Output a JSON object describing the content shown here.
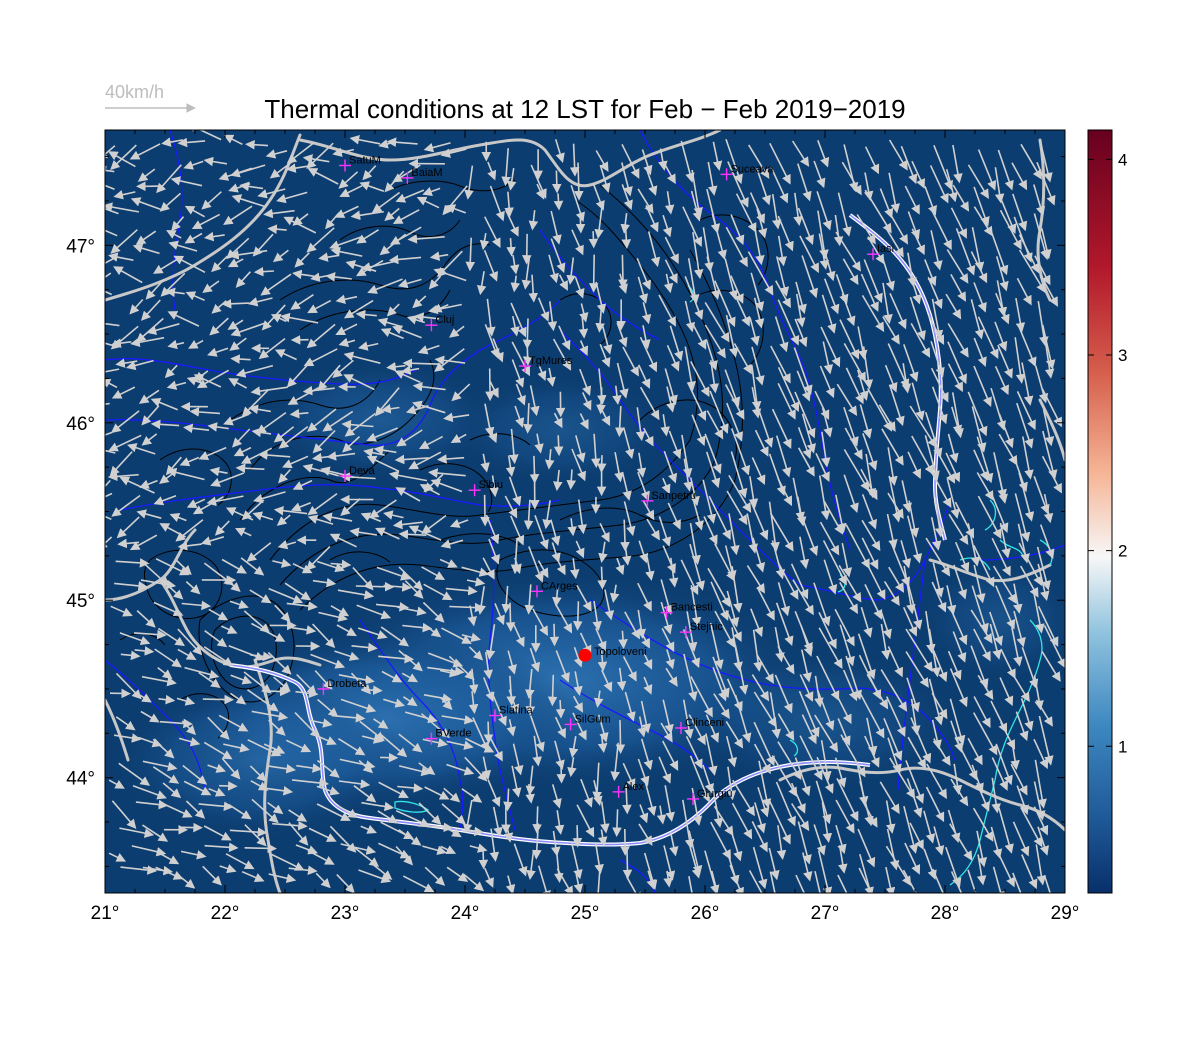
{
  "title": "Thermal conditions at 12 LST for Feb − Feb  2019−2019",
  "wind_scale": {
    "label": "40km/h"
  },
  "x_ticks": [
    "21°",
    "22°",
    "23°",
    "24°",
    "25°",
    "26°",
    "27°",
    "28°",
    "29°"
  ],
  "y_ticks": [
    "47°",
    "46°",
    "45°",
    "44°"
  ],
  "colorbar": {
    "ticks": [
      "1",
      "2",
      "3",
      "4"
    ],
    "colors": [
      "#08306b",
      "#2166ac",
      "#4393c3",
      "#92c5de",
      "#f7f7f7",
      "#f4a582",
      "#d6604d",
      "#b2182b",
      "#67001f"
    ]
  },
  "colors": {
    "map_background": "#0c3d70",
    "lowland_light": "#2b6fae",
    "rivers": "#1a1aff",
    "borders": "#c8c8c8",
    "lakes": "#33e6e6",
    "arrows": "#d0d0d0",
    "city_marker": "#ff33ff",
    "site_marker": "#ff0000"
  },
  "map": {
    "lon_range": [
      21,
      29
    ],
    "lat_range": [
      43.35,
      47.65
    ],
    "cities": [
      {
        "name": "SatuM",
        "lon": 23.0,
        "lat": 47.45
      },
      {
        "name": "BaiaM",
        "lon": 23.52,
        "lat": 47.38
      },
      {
        "name": "Suceava",
        "lon": 26.18,
        "lat": 47.4
      },
      {
        "name": "Iasi",
        "lon": 27.4,
        "lat": 46.95
      },
      {
        "name": "Cluj",
        "lon": 23.72,
        "lat": 46.55
      },
      {
        "name": "TgMures",
        "lon": 24.5,
        "lat": 46.32
      },
      {
        "name": "Deva",
        "lon": 23.0,
        "lat": 45.7
      },
      {
        "name": "Sibiu",
        "lon": 24.08,
        "lat": 45.62
      },
      {
        "name": "Sanpetru",
        "lon": 25.52,
        "lat": 45.56
      },
      {
        "name": "CArges",
        "lon": 24.6,
        "lat": 45.05
      },
      {
        "name": "Bancesti",
        "lon": 25.68,
        "lat": 44.93
      },
      {
        "name": "Stejnic",
        "lon": 25.84,
        "lat": 44.82
      },
      {
        "name": "Drobeta",
        "lon": 22.82,
        "lat": 44.5
      },
      {
        "name": "Slatina",
        "lon": 24.25,
        "lat": 44.35
      },
      {
        "name": "SilGum",
        "lon": 24.88,
        "lat": 44.3
      },
      {
        "name": "Clinceni",
        "lon": 25.8,
        "lat": 44.28
      },
      {
        "name": "BVerde",
        "lon": 23.72,
        "lat": 44.22
      },
      {
        "name": "Alex",
        "lon": 25.28,
        "lat": 43.92
      },
      {
        "name": "Giurgiu",
        "lon": 25.9,
        "lat": 43.88
      }
    ],
    "site": {
      "name": "Topoloveni",
      "lon": 25.0,
      "lat": 44.69
    }
  }
}
